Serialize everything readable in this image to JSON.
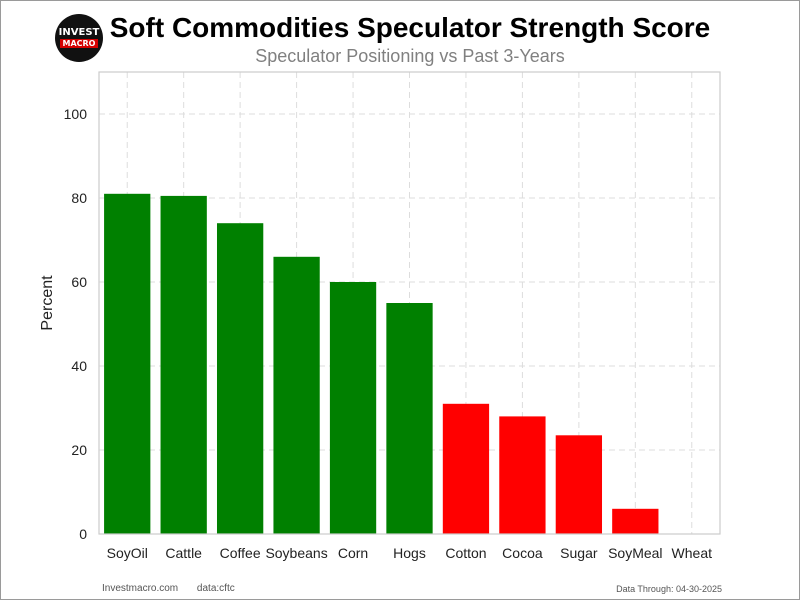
{
  "header": {
    "logo_line1": "INVEST",
    "logo_line2": "MACRO",
    "title": "Soft Commodities Speculator Strength Score",
    "subtitle": "Speculator Positioning vs Past 3-Years"
  },
  "footer": {
    "site": "Investmacro.com",
    "source": "data:cftc",
    "through": "Data Through: 04-30-2025"
  },
  "colors": {
    "positive": "#008000",
    "negative": "#ff0000"
  },
  "chart_data": {
    "type": "bar",
    "title": "Soft Commodities Speculator Strength Score",
    "subtitle": "Speculator Positioning vs Past 3-Years",
    "xlabel": "",
    "ylabel": "Percent",
    "ylim": [
      0,
      110
    ],
    "yticks": [
      0,
      20,
      40,
      60,
      80,
      100
    ],
    "grid": true,
    "categories": [
      "SoyOil",
      "Cattle",
      "Coffee",
      "Soybeans",
      "Corn",
      "Hogs",
      "Cotton",
      "Cocoa",
      "Sugar",
      "SoyMeal",
      "Wheat"
    ],
    "values": [
      81,
      80.5,
      74,
      66,
      60,
      55,
      31,
      28,
      23.5,
      6,
      0
    ],
    "bar_colors": [
      "#008000",
      "#008000",
      "#008000",
      "#008000",
      "#008000",
      "#008000",
      "#ff0000",
      "#ff0000",
      "#ff0000",
      "#ff0000",
      "#ff0000"
    ]
  }
}
